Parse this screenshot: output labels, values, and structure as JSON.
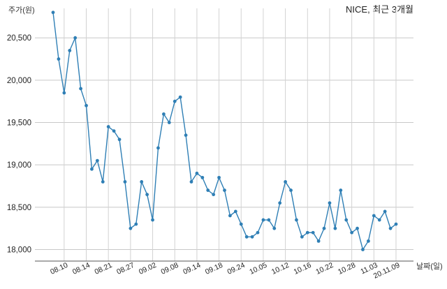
{
  "chart_data": {
    "type": "line",
    "title": "NICE, 최근 3개월",
    "ylabel": "주가(원)",
    "xlabel": "날짜(일)",
    "ylim": [
      17850,
      20900
    ],
    "yticks": [
      18000,
      18500,
      19000,
      19500,
      20000,
      20500
    ],
    "ytick_labels": [
      "18,000",
      "18,500",
      "19,000",
      "19,500",
      "20,000",
      "20,500"
    ],
    "grid": true,
    "line_color": "#2f7fb5",
    "x_tick_labels": [
      "08.10",
      "08.14",
      "08.21",
      "08.27",
      "09.02",
      "09.08",
      "09.14",
      "09.18",
      "09.24",
      "10.05",
      "10.12",
      "10.16",
      "10.22",
      "10.28",
      "11.03",
      "20.11.09"
    ],
    "x_tick_positions": [
      2,
      6,
      10,
      14,
      18,
      22,
      26,
      30,
      34,
      38,
      42,
      46,
      50,
      54,
      58,
      62
    ],
    "series": [
      {
        "values": [
          20800,
          20250,
          19850,
          20350,
          20500,
          19900,
          19700,
          18950,
          19050,
          18800,
          19450,
          19400,
          19300,
          18800,
          18250,
          18300,
          18800,
          18650,
          18350,
          19200,
          19600,
          19500,
          19750,
          19800,
          19350,
          18800,
          18900,
          18850,
          18700,
          18650,
          18850,
          18700,
          18400,
          18450,
          18300,
          18150,
          18150,
          18200,
          18350,
          18350,
          18250,
          18550,
          18800,
          18700,
          18350,
          18150,
          18200,
          18200,
          18100,
          18250,
          18550,
          18250,
          18700,
          18350,
          18200,
          18250,
          18000,
          18100,
          18400,
          18350,
          18450,
          18250,
          18300
        ]
      }
    ]
  }
}
